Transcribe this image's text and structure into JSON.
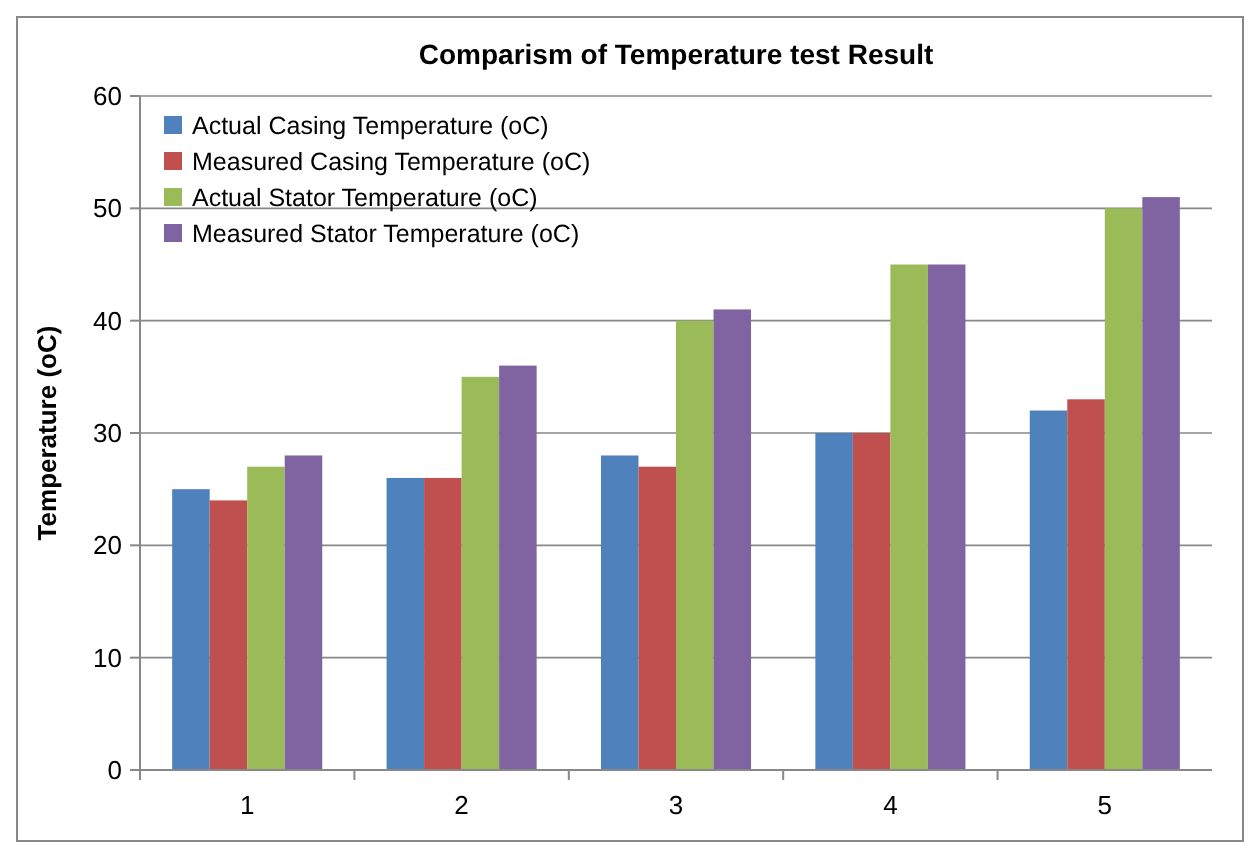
{
  "chart_data": {
    "type": "bar",
    "title": "Comparism of Temperature test Result",
    "ylabel": "Temperature (oC)",
    "categories": [
      "1",
      "2",
      "3",
      "4",
      "5"
    ],
    "series": [
      {
        "name": "Actual Casing Temperature (oC)",
        "color": "#4f81bd",
        "values": [
          25,
          26,
          28,
          30,
          32
        ]
      },
      {
        "name": "Measured Casing Temperature (oC)",
        "color": "#c0504d",
        "values": [
          24,
          26,
          27,
          30,
          33
        ]
      },
      {
        "name": "Actual Stator Temperature (oC)",
        "color": "#9bbb59",
        "values": [
          27,
          35,
          40,
          45,
          50
        ]
      },
      {
        "name": "Measured Stator Temperature (oC)",
        "color": "#8064a2",
        "values": [
          28,
          36,
          41,
          45,
          51
        ]
      }
    ],
    "ylim": [
      0,
      60
    ],
    "yticks": [
      0,
      10,
      20,
      30,
      40,
      50,
      60
    ],
    "grid": "y",
    "legend": "top left"
  }
}
